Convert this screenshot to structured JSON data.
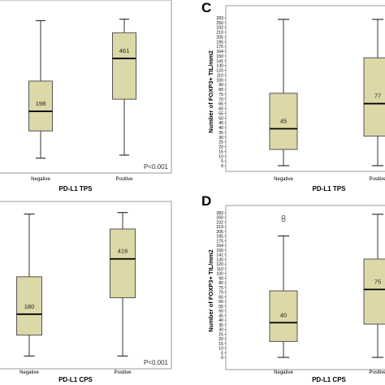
{
  "colors": {
    "box_fill": "#dcd8a8",
    "box_stroke": "#555555",
    "frame": "#9a9a9a",
    "text": "#000000"
  },
  "chart_data": [
    {
      "type": "boxplot",
      "panel_letter": "",
      "xlabel": "PD-L1 TPS",
      "ylabel": "",
      "y_ticks": [],
      "annotation": "P<0.001",
      "categories": [
        "Negative",
        "Positive"
      ],
      "boxes": [
        {
          "category": "Negative",
          "label": "198",
          "whisker_low": 0.05,
          "q1": 0.23,
          "median": 0.36,
          "q3": 0.56,
          "whisker_high": 0.96
        },
        {
          "category": "Positive",
          "label": "461",
          "whisker_low": 0.07,
          "q1": 0.44,
          "median": 0.71,
          "q3": 0.88,
          "whisker_high": 0.97
        }
      ]
    },
    {
      "type": "boxplot",
      "panel_letter": "C",
      "xlabel": "PD-L1 TPS",
      "ylabel": "Number of FOXP3+ TIL/mm2",
      "y_ticks": [
        "0",
        "5",
        "10",
        "15",
        "20",
        "25",
        "30",
        "35",
        "40",
        "45",
        "50",
        "55",
        "60",
        "65",
        "70",
        "75",
        "80",
        "90",
        "100",
        "110",
        "120",
        "130",
        "141",
        "150",
        "164",
        "175",
        "195",
        "205",
        "219",
        "232",
        "250",
        "283"
      ],
      "annotation": "",
      "categories": [
        "Negative",
        "Positive"
      ],
      "boxes": [
        {
          "category": "Negative",
          "label": "45",
          "whisker_low": 0.0,
          "q1": 0.11,
          "median": 0.25,
          "q3": 0.49,
          "whisker_high": 0.99
        },
        {
          "category": "Positive",
          "label": "77",
          "whisker_low": 0.0,
          "q1": 0.2,
          "median": 0.42,
          "q3": 0.73,
          "whisker_high": 0.99
        }
      ]
    },
    {
      "type": "boxplot",
      "panel_letter": "",
      "xlabel": "PD-L1 CPS",
      "ylabel": "",
      "y_ticks": [],
      "annotation": "P<0.001",
      "categories": [
        "Negative",
        "Positive"
      ],
      "boxes": [
        {
          "category": "Negative",
          "label": "180",
          "whisker_low": 0.02,
          "q1": 0.16,
          "median": 0.3,
          "q3": 0.55,
          "whisker_high": 0.97
        },
        {
          "category": "Positive",
          "label": "416",
          "whisker_low": 0.02,
          "q1": 0.41,
          "median": 0.67,
          "q3": 0.87,
          "whisker_high": 0.98
        }
      ]
    },
    {
      "type": "boxplot",
      "panel_letter": "D",
      "xlabel": "PD-L1 CPS",
      "ylabel": "Number of FOXP3+ TIL/mm2",
      "y_ticks": [
        "0",
        "5",
        "10",
        "15",
        "20",
        "25",
        "30",
        "35",
        "40",
        "45",
        "50",
        "55",
        "60",
        "65",
        "70",
        "75",
        "80",
        "90",
        "100",
        "110",
        "120",
        "130",
        "141",
        "150",
        "164",
        "175",
        "195",
        "205",
        "219",
        "232",
        "250",
        "283"
      ],
      "annotation": "",
      "categories": [
        "Negative",
        "Positive"
      ],
      "boxes": [
        {
          "category": "Negative",
          "label": "40",
          "whisker_low": 0.0,
          "q1": 0.11,
          "median": 0.24,
          "q3": 0.46,
          "whisker_high": 0.84,
          "outliers": [
            0.97,
            0.95
          ]
        },
        {
          "category": "Positive",
          "label": "75",
          "whisker_low": 0.0,
          "q1": 0.23,
          "median": 0.47,
          "q3": 0.68,
          "whisker_high": 0.99
        }
      ]
    }
  ]
}
